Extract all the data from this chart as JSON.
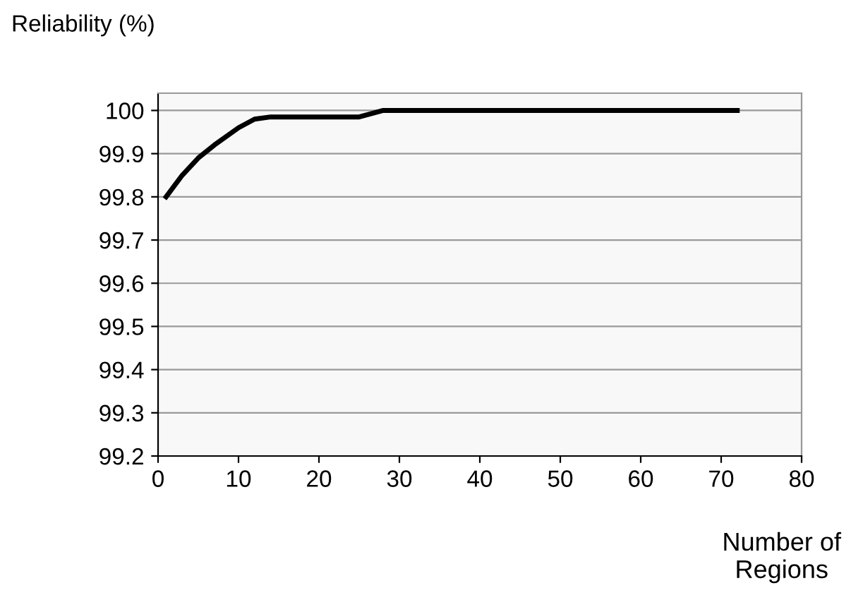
{
  "chart_data": {
    "type": "line",
    "ylabel": "Reliability (%)",
    "xlabel": "Number of\nRegions",
    "x": [
      1,
      3,
      5,
      7,
      10,
      12,
      14,
      20,
      25,
      28,
      40,
      50,
      60,
      72
    ],
    "series": [
      {
        "color": "#000000",
        "values": [
          99.8,
          99.85,
          99.89,
          99.92,
          99.96,
          99.98,
          99.985,
          99.985,
          99.985,
          100,
          100,
          100,
          100,
          100
        ]
      }
    ],
    "xlim": [
      0,
      80
    ],
    "xticks": [
      0,
      10,
      20,
      30,
      40,
      50,
      60,
      70,
      80
    ],
    "ylim": [
      99.2,
      100.04
    ],
    "yticks": [
      99.2,
      99.3,
      99.4,
      99.5,
      99.6,
      99.7,
      99.8,
      99.9,
      100
    ],
    "grid": "y",
    "marker": "none",
    "line_style": "solid",
    "legend": false
  }
}
